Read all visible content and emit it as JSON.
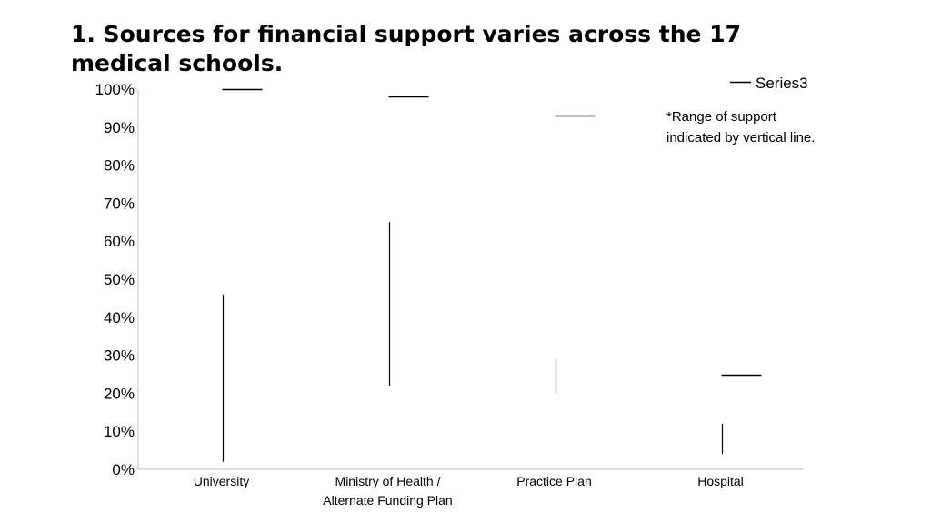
{
  "title": "1. Sources for financial support varies across the 17 medical schools.",
  "chart_data": {
    "type": "high-low-close",
    "categories": [
      [
        "University"
      ],
      [
        "Ministry of Health /",
        "Alternate Funding Plan"
      ],
      [
        "Practice Plan"
      ],
      [
        "Hospital"
      ]
    ],
    "series": [
      {
        "name": "",
        "role": "high",
        "values": [
          0.46,
          0.65,
          0.29,
          0.12
        ]
      },
      {
        "name": "",
        "role": "low",
        "values": [
          0.02,
          0.22,
          0.2,
          0.04
        ]
      },
      {
        "name": "Series3",
        "role": "marker",
        "values": [
          1.0,
          0.98,
          0.93,
          0.25
        ]
      }
    ],
    "yticks": [
      "0%",
      "10%",
      "20%",
      "30%",
      "40%",
      "50%",
      "60%",
      "70%",
      "80%",
      "90%",
      "100%"
    ],
    "ylim": [
      0,
      1
    ],
    "grid": false,
    "legend": {
      "position": "top-right",
      "entries": [
        "Series3"
      ]
    },
    "annotation": "*Range of support indicated by vertical line.",
    "line_color": "#000000"
  }
}
